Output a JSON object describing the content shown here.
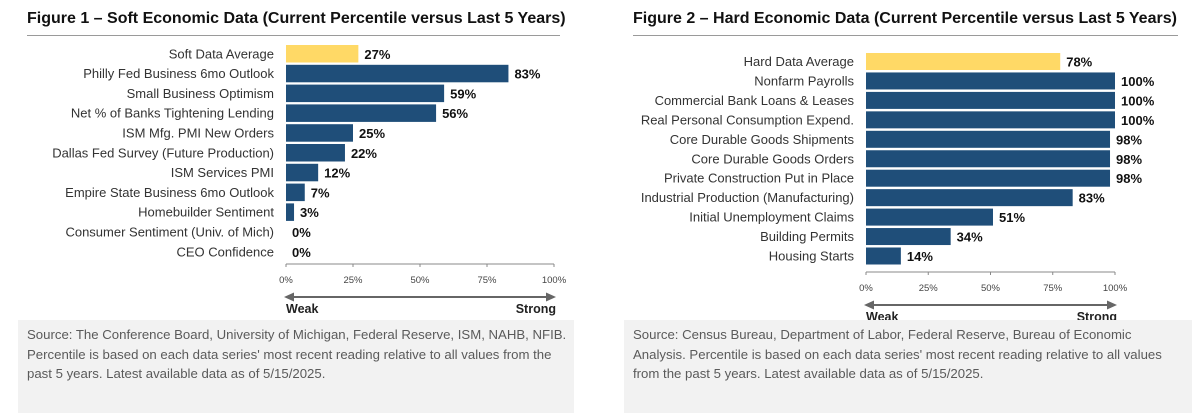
{
  "chart_data": [
    {
      "type": "bar",
      "orientation": "horizontal",
      "title": "Figure 1 – Soft Economic Data (Current Percentile versus Last 5 Years)",
      "categories": [
        "Soft Data Average",
        "Philly Fed Business 6mo Outlook",
        "Small Business Optimism",
        "Net % of Banks Tightening Lending",
        "ISM Mfg. PMI New Orders",
        "Dallas Fed Survey (Future Production)",
        "ISM Services PMI",
        "Empire State Business 6mo Outlook",
        "Homebuilder Sentiment",
        "Consumer Sentiment (Univ. of Mich)",
        "CEO Confidence"
      ],
      "values": [
        27,
        83,
        59,
        56,
        25,
        22,
        12,
        7,
        3,
        0,
        0
      ],
      "value_labels": [
        "27%",
        "83%",
        "59%",
        "56%",
        "25%",
        "22%",
        "12%",
        "7%",
        "3%",
        "0%",
        "0%"
      ],
      "highlight_index": 0,
      "xlim": [
        0,
        100
      ],
      "xticks": [
        "0%",
        "25%",
        "50%",
        "75%",
        "100%"
      ],
      "arrow_left_label": "Weak",
      "arrow_right_label": "Strong",
      "colors": {
        "bar": "#1f4e79",
        "highlight": "#ffd966"
      },
      "source": "Source: The Conference Board, University of Michigan, Federal Reserve, ISM, NAHB, NFIB. Percentile is based on each data series' most recent reading relative to all values from the past 5 years. Latest available data as of 5/15/2025."
    },
    {
      "type": "bar",
      "orientation": "horizontal",
      "title": "Figure 2 – Hard Economic Data (Current Percentile versus Last 5 Years)",
      "categories": [
        "Hard Data Average",
        "Nonfarm Payrolls",
        "Commercial Bank Loans & Leases",
        "Real Personal Consumption Expend.",
        "Core Durable Goods Shipments",
        "Core Durable Goods Orders",
        "Private Construction Put in Place",
        "Industrial Production (Manufacturing)",
        "Initial Unemployment Claims",
        "Building Permits",
        "Housing Starts"
      ],
      "values": [
        78,
        100,
        100,
        100,
        98,
        98,
        98,
        83,
        51,
        34,
        14
      ],
      "value_labels": [
        "78%",
        "100%",
        "100%",
        "100%",
        "98%",
        "98%",
        "98%",
        "83%",
        "51%",
        "34%",
        "14%"
      ],
      "highlight_index": 0,
      "xlim": [
        0,
        100
      ],
      "xticks": [
        "0%",
        "25%",
        "50%",
        "75%",
        "100%"
      ],
      "arrow_left_label": "Weak",
      "arrow_right_label": "Strong",
      "colors": {
        "bar": "#1f4e79",
        "highlight": "#ffd966"
      },
      "source": "Source: Census Bureau, Department of Labor, Federal Reserve, Bureau of Economic Analysis. Percentile is based on each data series' most recent reading relative to all values from the past 5 years. Latest available data as of 5/15/2025."
    }
  ]
}
